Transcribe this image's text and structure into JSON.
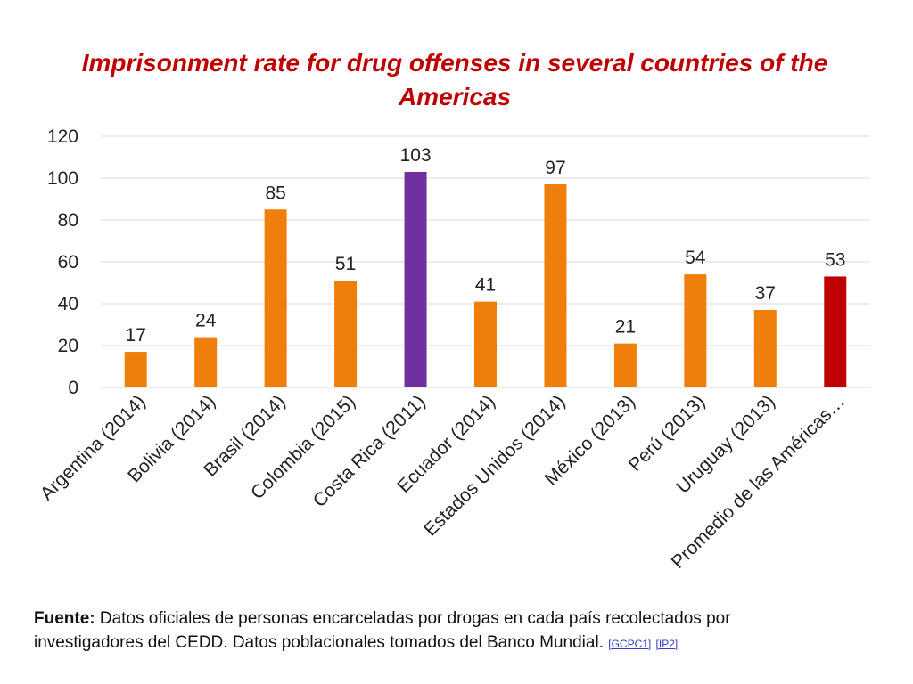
{
  "chart_data": {
    "type": "bar",
    "title": "Imprisonment rate for drug offenses in several countries of the Americas",
    "categories": [
      "Argentina (2014)",
      "Bolivia (2014)",
      "Brasil (2014)",
      "Colombia (2015)",
      "Costa Rica (2011)",
      "Ecuador (2014)",
      "Estados Unidos (2014)",
      "México (2013)",
      "Perú (2013)",
      "Uruguay (2013)",
      "Promedio de las Américas…"
    ],
    "values": [
      17,
      24,
      85,
      51,
      103,
      41,
      97,
      21,
      54,
      37,
      53
    ],
    "bar_colors": [
      "#ef7f0a",
      "#ef7f0a",
      "#ef7f0a",
      "#ef7f0a",
      "#7030a0",
      "#ef7f0a",
      "#ef7f0a",
      "#ef7f0a",
      "#ef7f0a",
      "#ef7f0a",
      "#c00000"
    ],
    "ylim": [
      0,
      120
    ],
    "yticks": [
      0,
      20,
      40,
      60,
      80,
      100,
      120
    ],
    "xlabel": "",
    "ylabel": "",
    "grid": true,
    "legend": "none"
  },
  "source": {
    "label": "Fuente:",
    "text": "Datos oficiales de personas encarceladas por drogas en cada país recolectados por investigadores del CEDD. Datos poblacionales tomados del Banco Mundial.",
    "refs": [
      "[GCPC1]",
      "[IP2]"
    ]
  },
  "colors": {
    "title": "#c00000",
    "gridline": "#d9d9d9"
  }
}
